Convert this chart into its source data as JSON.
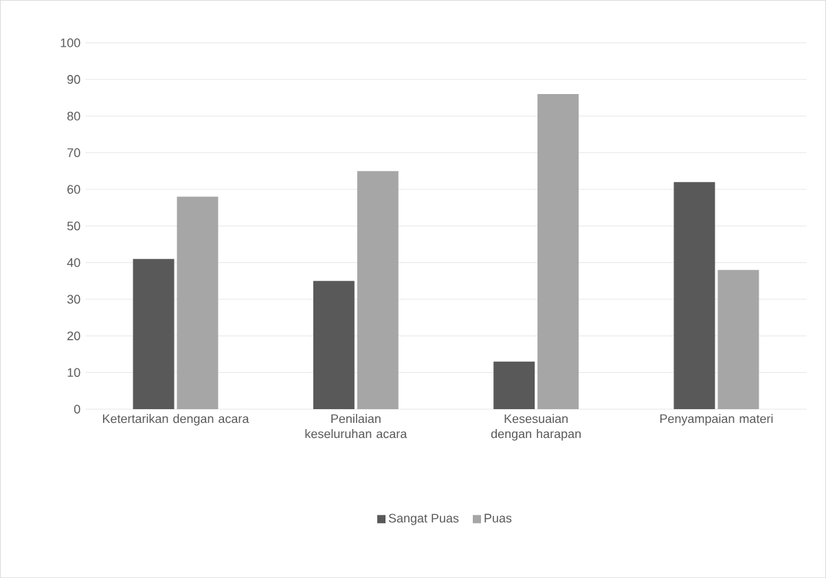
{
  "chart_data": {
    "type": "bar",
    "categories": [
      "Ketertarikan dengan acara",
      "Penilaian keseluruhan acara",
      "Kesesuaian dengan harapan",
      "Penyampaian materi"
    ],
    "series": [
      {
        "name": "Sangat Puas",
        "color": "#595959",
        "values": [
          41,
          35,
          13,
          62
        ]
      },
      {
        "name": "Puas",
        "color": "#a6a6a6",
        "values": [
          58,
          65,
          86,
          38
        ]
      }
    ],
    "ylim": [
      0,
      100
    ],
    "yticks": [
      0,
      10,
      20,
      30,
      40,
      50,
      60,
      70,
      80,
      90,
      100
    ],
    "grid": "y",
    "legend": "bottom"
  }
}
